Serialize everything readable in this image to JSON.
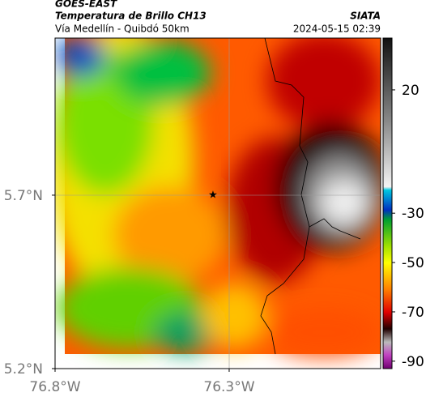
{
  "header": {
    "title": "GOES-EAST",
    "subtitle": "Temperatura de Brillo CH13",
    "source": "SIATA",
    "route": "Vía Medellín - Quibdó 50km",
    "timestamp": "2024-05-15 02:39"
  },
  "map": {
    "lon_range": [
      -76.8,
      -75.865
    ],
    "lat_range": [
      5.2,
      6.153
    ],
    "lon_ticks": [
      {
        "value": -76.8,
        "label": "76.8°W"
      },
      {
        "value": -76.3,
        "label": "76.3°W"
      }
    ],
    "lat_ticks": [
      {
        "value": 5.7,
        "label": "5.7°N"
      },
      {
        "value": 5.2,
        "label": "5.2°N"
      }
    ],
    "colorbar": {
      "range": [
        -93,
        41
      ],
      "ticks": [
        20,
        -30,
        -50,
        -70,
        -90
      ]
    }
  }
}
